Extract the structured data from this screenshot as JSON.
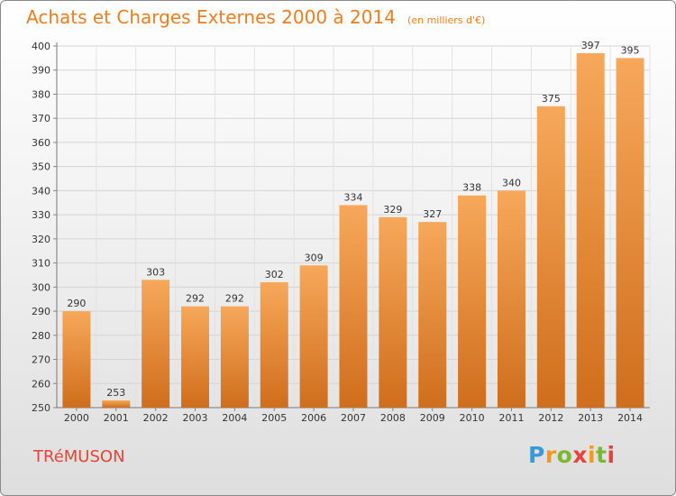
{
  "header": {
    "title": "Achats et Charges Externes 2000 à 2014",
    "unit": "(en milliers d'€)"
  },
  "footer": {
    "commune": "TRéMUSON",
    "logo_letters": [
      "P",
      "r",
      "o",
      "x",
      "i",
      "t",
      "i"
    ]
  },
  "colors": {
    "bar_light": "#f7a85a",
    "bar_dark": "#cf6e1c",
    "title": "#ef7d1f",
    "commune": "#e8433a"
  },
  "chart_data": {
    "type": "bar",
    "categories": [
      "2000",
      "2001",
      "2002",
      "2003",
      "2004",
      "2005",
      "2006",
      "2007",
      "2008",
      "2009",
      "2010",
      "2011",
      "2012",
      "2013",
      "2014"
    ],
    "values": [
      290,
      253,
      303,
      292,
      292,
      302,
      309,
      334,
      329,
      327,
      338,
      340,
      375,
      397,
      395
    ],
    "yticks": [
      250,
      260,
      270,
      280,
      290,
      300,
      310,
      320,
      330,
      340,
      350,
      360,
      370,
      380,
      390,
      400
    ],
    "ylim": [
      250,
      400
    ],
    "grid": true,
    "data_labels": true
  }
}
